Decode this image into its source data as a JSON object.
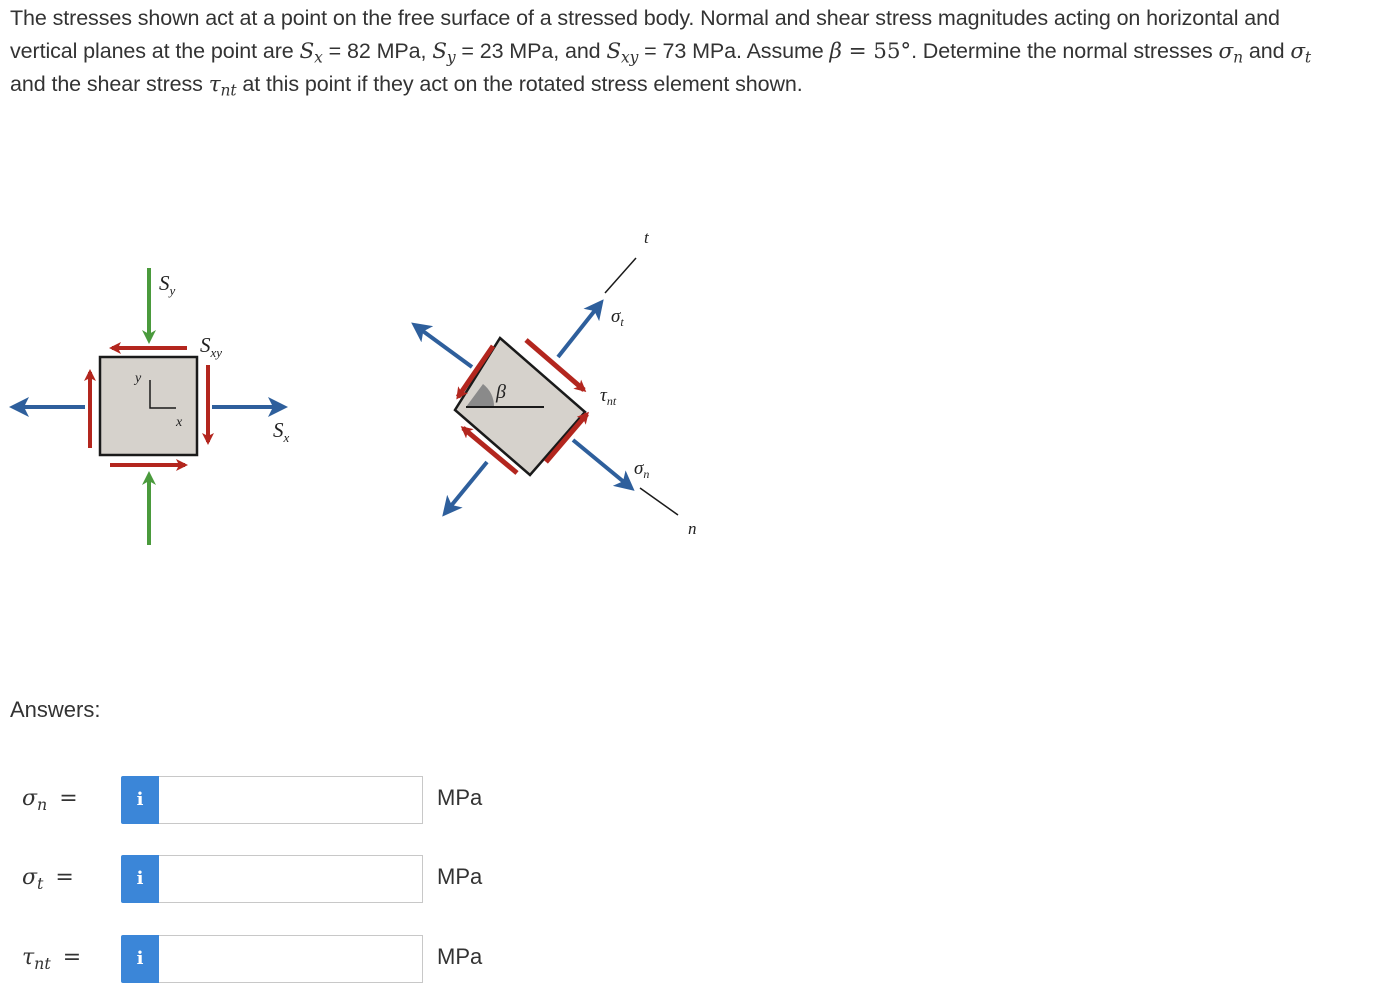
{
  "problem": {
    "l1_a": "The stresses shown act at a point on the free surface of a stressed body. Normal and shear stress magnitudes acting on horizontal and",
    "l2_a": "vertical planes at the point are ",
    "sx_sym": "S",
    "sx_sub": "x",
    "sx_val": " = 82 MPa, ",
    "sy_sym": "S",
    "sy_sub": "y",
    "sy_val": " = 23 MPa, and ",
    "sxy_sym": "S",
    "sxy_sub": "xy",
    "sxy_val": " = 73 MPa. Assume ",
    "beta_sym": "β",
    "beta_val": " = 55°",
    "l2_b": ". Determine the normal stresses ",
    "sn_sym": "σ",
    "sn_sub": "n",
    "and": " and ",
    "st_sym": "σ",
    "st_sub": "t",
    "l3_a": "and the shear stress ",
    "tnt_sym": "τ",
    "tnt_sub": "nt",
    "l3_b": " at this point if they act on the rotated stress element shown."
  },
  "figure": {
    "left_labels": {
      "sy": "S",
      "sy_sub": "y",
      "sxy": "S",
      "sxy_sub": "xy",
      "sx": "S",
      "sx_sub": "x",
      "axis_y": "y",
      "axis_x": "x"
    },
    "right_labels": {
      "t": "t",
      "sigma_t": "σ",
      "sigma_t_sub": "t",
      "tau_nt": "τ",
      "tau_nt_sub": "nt",
      "sigma_n": "σ",
      "sigma_n_sub": "n",
      "n": "n",
      "beta": "β"
    },
    "colors": {
      "green": "#4a9a3c",
      "red": "#b3261e",
      "blue": "#2e5f9c",
      "box_fill": "#d6d2cc",
      "box_stroke": "#1a1a1a",
      "angle_fill": "#8a8a8a"
    }
  },
  "answers": {
    "label": "Answers:",
    "info_icon": "i",
    "rows": [
      {
        "sym": "σ",
        "sub": "n",
        "eq": "=",
        "value": "",
        "unit": "MPa"
      },
      {
        "sym": "σ",
        "sub": "t",
        "eq": "=",
        "value": "",
        "unit": "MPa"
      },
      {
        "sym": "τ",
        "sub": "nt",
        "eq": "=",
        "value": "",
        "unit": "MPa"
      }
    ]
  }
}
